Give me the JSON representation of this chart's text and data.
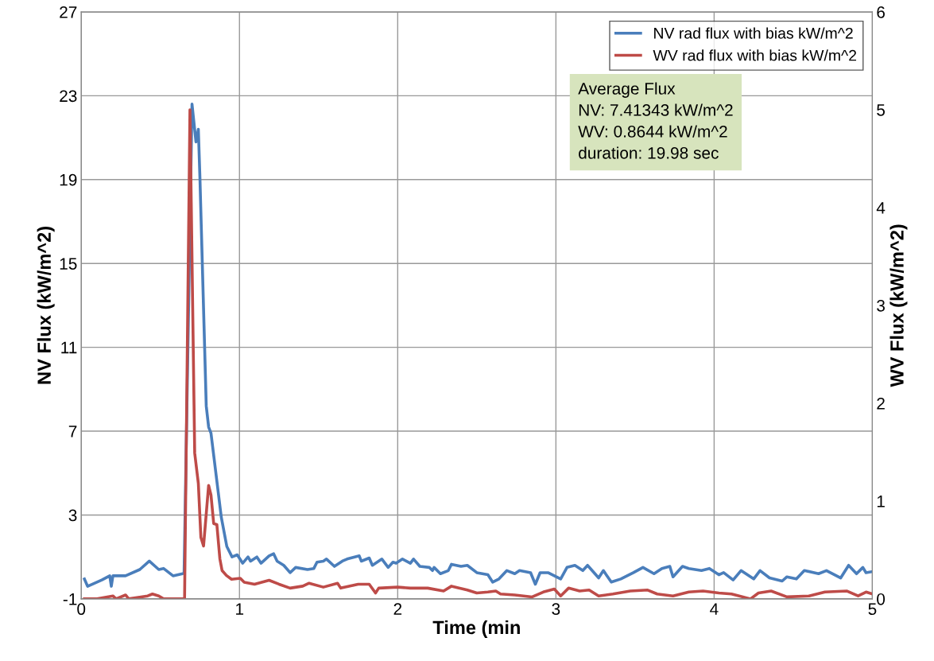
{
  "chart_data": {
    "type": "line",
    "xlabel": "Time (min",
    "ylabel": "NV Flux (kW/m^2)",
    "y2label": "WV Flux (kW/m^2)",
    "xlim": [
      0,
      5
    ],
    "xticks": [
      0,
      1,
      2,
      3,
      4,
      5
    ],
    "ylim": [
      -1,
      27
    ],
    "yticks": [
      -1,
      3,
      7,
      11,
      15,
      19,
      23,
      27
    ],
    "y2lim": [
      0,
      6
    ],
    "y2ticks": [
      0,
      1,
      2,
      3,
      4,
      5,
      6
    ],
    "grid": true,
    "legend": "top right",
    "marker": "none",
    "line_style": "solid",
    "annotations": [
      "Average Flux",
      "NV: 7.41343 kW/m^2",
      "WV: 0.8644 kW/m^2",
      "duration: 19.98 sec"
    ],
    "series": [
      {
        "name": "NV rad flux with bias kW/m^2",
        "color": "#4a7ebb",
        "axis": "y",
        "x": [
          0.02,
          0.04,
          0.13,
          0.18,
          0.19,
          0.2,
          0.28,
          0.37,
          0.43,
          0.49,
          0.52,
          0.58,
          0.64,
          0.65,
          0.7,
          0.725,
          0.74,
          0.75,
          0.79,
          0.805,
          0.82,
          0.885,
          0.92,
          0.953,
          0.986,
          1.02,
          1.054,
          1.07,
          1.11,
          1.136,
          1.187,
          1.216,
          1.238,
          1.28,
          1.32,
          1.355,
          1.43,
          1.47,
          1.49,
          1.53,
          1.55,
          1.6,
          1.65,
          1.68,
          1.757,
          1.77,
          1.82,
          1.84,
          1.9,
          1.94,
          1.97,
          1.99,
          2.03,
          2.08,
          2.1,
          2.14,
          2.2,
          2.22,
          2.23,
          2.27,
          2.32,
          2.34,
          2.4,
          2.44,
          2.5,
          2.57,
          2.6,
          2.64,
          2.69,
          2.74,
          2.77,
          2.84,
          2.87,
          2.9,
          2.95,
          3.03,
          3.07,
          3.12,
          3.17,
          3.2,
          3.27,
          3.3,
          3.35,
          3.41,
          3.49,
          3.55,
          3.62,
          3.67,
          3.72,
          3.74,
          3.8,
          3.84,
          3.92,
          3.97,
          4.03,
          4.06,
          4.12,
          4.17,
          4.25,
          4.29,
          4.35,
          4.43,
          4.46,
          4.52,
          4.57,
          4.66,
          4.71,
          4.8,
          4.85,
          4.9,
          4.94,
          4.96,
          5.0
        ],
        "values": [
          -0.05,
          -0.4,
          -0.1,
          0.1,
          -0.4,
          0.1,
          0.1,
          0.4,
          0.8,
          0.4,
          0.45,
          0.1,
          0.2,
          0.25,
          22.6,
          20.8,
          21.4,
          19.1,
          8.2,
          7.2,
          6.9,
          2.9,
          1.5,
          1.0,
          1.1,
          0.7,
          1.0,
          0.8,
          1.0,
          0.7,
          1.05,
          1.15,
          0.8,
          0.6,
          0.25,
          0.5,
          0.4,
          0.45,
          0.75,
          0.8,
          0.9,
          0.55,
          0.8,
          0.9,
          1.05,
          0.8,
          0.95,
          0.6,
          0.9,
          0.5,
          0.75,
          0.7,
          0.9,
          0.7,
          0.9,
          0.55,
          0.5,
          0.35,
          0.5,
          0.2,
          0.35,
          0.65,
          0.55,
          0.6,
          0.25,
          0.15,
          -0.2,
          -0.05,
          0.35,
          0.2,
          0.35,
          0.25,
          -0.3,
          0.25,
          0.25,
          -0.05,
          0.5,
          0.6,
          0.35,
          0.6,
          0.0,
          0.35,
          -0.2,
          -0.05,
          0.25,
          0.5,
          0.2,
          0.45,
          0.55,
          0.05,
          0.55,
          0.45,
          0.35,
          0.45,
          0.15,
          0.25,
          -0.1,
          0.35,
          -0.05,
          0.35,
          0.0,
          -0.15,
          0.05,
          -0.05,
          0.35,
          0.2,
          0.35,
          0.0,
          0.6,
          0.2,
          0.5,
          0.25,
          0.3
        ]
      },
      {
        "name": "WV rad flux with bias kW/m^2",
        "color": "#be4b48",
        "axis": "y2",
        "x": [
          0.02,
          0.1,
          0.2,
          0.22,
          0.28,
          0.3,
          0.42,
          0.45,
          0.49,
          0.52,
          0.653,
          0.687,
          0.717,
          0.74,
          0.756,
          0.773,
          0.805,
          0.82,
          0.837,
          0.857,
          0.876,
          0.89,
          0.917,
          0.95,
          1.005,
          1.03,
          1.095,
          1.187,
          1.25,
          1.32,
          1.4,
          1.44,
          1.53,
          1.62,
          1.64,
          1.75,
          1.82,
          1.86,
          1.88,
          2.0,
          2.08,
          2.19,
          2.29,
          2.34,
          2.44,
          2.5,
          2.57,
          2.62,
          2.65,
          2.74,
          2.85,
          2.92,
          2.99,
          3.03,
          3.08,
          3.15,
          3.21,
          3.27,
          3.36,
          3.47,
          3.58,
          3.64,
          3.74,
          3.84,
          3.93,
          4.03,
          4.11,
          4.23,
          4.28,
          4.36,
          4.46,
          4.6,
          4.7,
          4.84,
          4.91,
          4.96,
          5.0
        ],
        "values": [
          0.0,
          0.0,
          0.03,
          0.0,
          0.04,
          0.0,
          0.03,
          0.05,
          0.03,
          0.0,
          0.0,
          5.0,
          1.49,
          1.18,
          0.63,
          0.54,
          1.16,
          1.06,
          0.77,
          0.76,
          0.41,
          0.29,
          0.24,
          0.2,
          0.21,
          0.17,
          0.15,
          0.19,
          0.15,
          0.11,
          0.13,
          0.16,
          0.12,
          0.16,
          0.11,
          0.15,
          0.15,
          0.06,
          0.11,
          0.12,
          0.11,
          0.11,
          0.08,
          0.13,
          0.09,
          0.06,
          0.07,
          0.08,
          0.05,
          0.04,
          0.02,
          0.07,
          0.1,
          0.03,
          0.11,
          0.08,
          0.09,
          0.03,
          0.05,
          0.08,
          0.09,
          0.05,
          0.03,
          0.07,
          0.08,
          0.06,
          0.05,
          0.0,
          0.06,
          0.08,
          0.02,
          0.03,
          0.07,
          0.08,
          0.03,
          0.07,
          0.05
        ]
      }
    ]
  }
}
